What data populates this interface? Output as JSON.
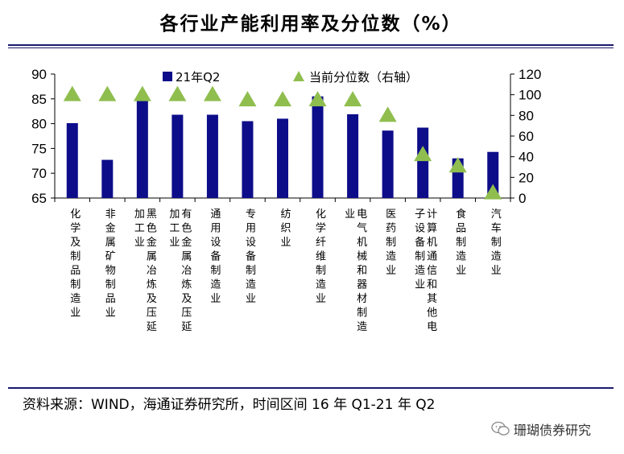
{
  "title": "各行业产能利用率及分位数（%）",
  "source": "资料来源：WIND，海通证券研究所，时间区间 16 年 Q1-21 年 Q2",
  "watermark": {
    "text": "珊瑚债券研究",
    "icon": "wechat-icon"
  },
  "colors": {
    "bar": "#0d0d8a",
    "marker": "#8fbe4e",
    "rule": "#1a1a6e"
  },
  "chart_data": {
    "type": "bar",
    "legend_placement": "top",
    "grid": false,
    "y_left": {
      "min": 65,
      "max": 90,
      "ticks": [
        90,
        85,
        80,
        75,
        70,
        65
      ]
    },
    "y_right": {
      "min": 0,
      "max": 120,
      "ticks": [
        120,
        100,
        80,
        60,
        40,
        20,
        0
      ]
    },
    "categories": [
      {
        "lines": [
          "化学及制品制造业"
        ]
      },
      {
        "lines": [
          "非金属矿物制品业"
        ]
      },
      {
        "lines": [
          "黑色金属冶炼及压延",
          "加工业"
        ]
      },
      {
        "lines": [
          "有色金属冶炼及压延",
          "加工业"
        ]
      },
      {
        "lines": [
          "通用设备制造业"
        ]
      },
      {
        "lines": [
          "专用设备制造业"
        ]
      },
      {
        "lines": [
          "纺织业"
        ]
      },
      {
        "lines": [
          "化学纤维制造业"
        ]
      },
      {
        "lines": [
          "电气机械和器材制造",
          "业"
        ]
      },
      {
        "lines": [
          "医药制造业"
        ]
      },
      {
        "lines": [
          "计算机通信和其他电",
          "子设备制造业"
        ]
      },
      {
        "lines": [
          "食品制造业"
        ]
      },
      {
        "lines": [
          "汽车制造业"
        ]
      }
    ],
    "series": [
      {
        "name": "21年Q2",
        "type": "bar",
        "axis": "left",
        "values": [
          80.1,
          72.7,
          84.9,
          81.8,
          81.8,
          80.5,
          81.0,
          85.5,
          81.9,
          78.6,
          79.2,
          73.0,
          74.3
        ]
      },
      {
        "name": "当前分位数（右轴）",
        "type": "marker",
        "axis": "right",
        "values": [
          100,
          100,
          100,
          100,
          100,
          95,
          95,
          95,
          95,
          80,
          42,
          31,
          5
        ]
      }
    ]
  }
}
